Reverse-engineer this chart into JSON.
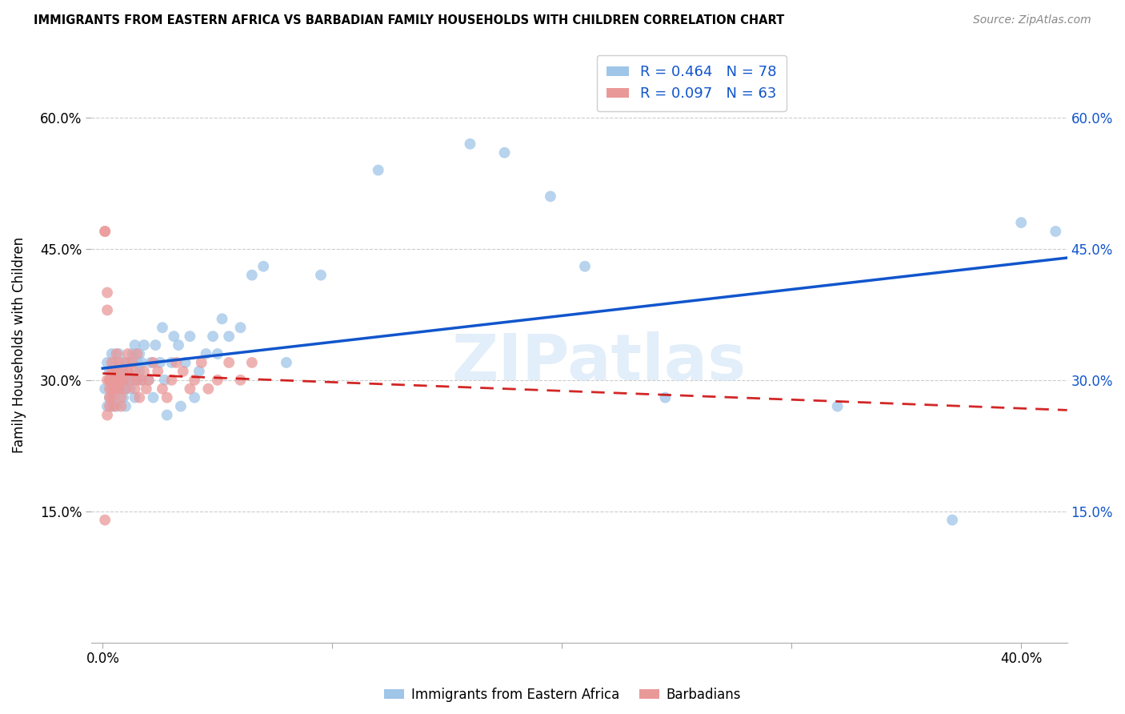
{
  "title": "IMMIGRANTS FROM EASTERN AFRICA VS BARBADIAN FAMILY HOUSEHOLDS WITH CHILDREN CORRELATION CHART",
  "source": "Source: ZipAtlas.com",
  "ylabel": "Family Households with Children",
  "x_ticks": [
    0.0,
    0.1,
    0.2,
    0.3,
    0.4
  ],
  "x_ticklabels": [
    "0.0%",
    "",
    "",
    "",
    "40.0%"
  ],
  "y_ticks": [
    0.0,
    0.15,
    0.3,
    0.45,
    0.6
  ],
  "y_ticklabels_left": [
    "",
    "15.0%",
    "30.0%",
    "45.0%",
    "60.0%"
  ],
  "y_ticklabels_right": [
    "",
    "15.0%",
    "30.0%",
    "45.0%",
    "60.0%"
  ],
  "xlim": [
    -0.005,
    0.42
  ],
  "ylim": [
    0.0,
    0.68
  ],
  "legend_labels": [
    "Immigrants from Eastern Africa",
    "Barbadians"
  ],
  "color_blue": "#9fc5e8",
  "color_pink": "#ea9999",
  "line_blue": "#1155cc",
  "line_pink": "#cc0000",
  "text_blue": "#1155cc",
  "watermark": "ZIPatlas",
  "blue_scatter_x": [
    0.001,
    0.002,
    0.002,
    0.003,
    0.003,
    0.004,
    0.004,
    0.004,
    0.005,
    0.005,
    0.005,
    0.006,
    0.006,
    0.006,
    0.007,
    0.007,
    0.007,
    0.008,
    0.008,
    0.008,
    0.009,
    0.009,
    0.009,
    0.01,
    0.01,
    0.01,
    0.011,
    0.011,
    0.012,
    0.012,
    0.013,
    0.013,
    0.014,
    0.014,
    0.015,
    0.015,
    0.016,
    0.016,
    0.017,
    0.017,
    0.018,
    0.02,
    0.021,
    0.022,
    0.023,
    0.025,
    0.026,
    0.027,
    0.028,
    0.03,
    0.031,
    0.033,
    0.034,
    0.036,
    0.038,
    0.04,
    0.042,
    0.045,
    0.048,
    0.05,
    0.052,
    0.055,
    0.06,
    0.065,
    0.07,
    0.08,
    0.095,
    0.12,
    0.16,
    0.175,
    0.195,
    0.21,
    0.245,
    0.32,
    0.37,
    0.4,
    0.415
  ],
  "blue_scatter_y": [
    0.29,
    0.27,
    0.32,
    0.28,
    0.31,
    0.27,
    0.3,
    0.33,
    0.28,
    0.3,
    0.32,
    0.27,
    0.3,
    0.29,
    0.29,
    0.31,
    0.33,
    0.3,
    0.29,
    0.31,
    0.3,
    0.28,
    0.32,
    0.27,
    0.3,
    0.29,
    0.31,
    0.3,
    0.32,
    0.29,
    0.33,
    0.3,
    0.28,
    0.34,
    0.32,
    0.3,
    0.33,
    0.31,
    0.32,
    0.3,
    0.34,
    0.3,
    0.32,
    0.28,
    0.34,
    0.32,
    0.36,
    0.3,
    0.26,
    0.32,
    0.35,
    0.34,
    0.27,
    0.32,
    0.35,
    0.28,
    0.31,
    0.33,
    0.35,
    0.33,
    0.37,
    0.35,
    0.36,
    0.42,
    0.43,
    0.32,
    0.42,
    0.54,
    0.57,
    0.56,
    0.51,
    0.43,
    0.28,
    0.27,
    0.14,
    0.48,
    0.47
  ],
  "pink_scatter_x": [
    0.001,
    0.001,
    0.001,
    0.002,
    0.002,
    0.002,
    0.002,
    0.003,
    0.003,
    0.003,
    0.003,
    0.003,
    0.004,
    0.004,
    0.004,
    0.004,
    0.004,
    0.005,
    0.005,
    0.005,
    0.005,
    0.006,
    0.006,
    0.006,
    0.006,
    0.007,
    0.007,
    0.007,
    0.008,
    0.008,
    0.008,
    0.009,
    0.009,
    0.01,
    0.01,
    0.011,
    0.011,
    0.012,
    0.013,
    0.014,
    0.014,
    0.015,
    0.015,
    0.016,
    0.017,
    0.018,
    0.019,
    0.02,
    0.022,
    0.024,
    0.026,
    0.028,
    0.03,
    0.032,
    0.035,
    0.038,
    0.04,
    0.043,
    0.046,
    0.05,
    0.055,
    0.06,
    0.065
  ],
  "pink_scatter_y": [
    0.47,
    0.47,
    0.14,
    0.4,
    0.38,
    0.3,
    0.26,
    0.3,
    0.28,
    0.29,
    0.3,
    0.27,
    0.3,
    0.32,
    0.29,
    0.31,
    0.28,
    0.3,
    0.29,
    0.27,
    0.31,
    0.3,
    0.29,
    0.31,
    0.33,
    0.3,
    0.32,
    0.29,
    0.3,
    0.28,
    0.27,
    0.31,
    0.3,
    0.32,
    0.29,
    0.33,
    0.31,
    0.3,
    0.32,
    0.31,
    0.29,
    0.3,
    0.33,
    0.28,
    0.3,
    0.31,
    0.29,
    0.3,
    0.32,
    0.31,
    0.29,
    0.28,
    0.3,
    0.32,
    0.31,
    0.29,
    0.3,
    0.32,
    0.29,
    0.3,
    0.32,
    0.3,
    0.32
  ]
}
